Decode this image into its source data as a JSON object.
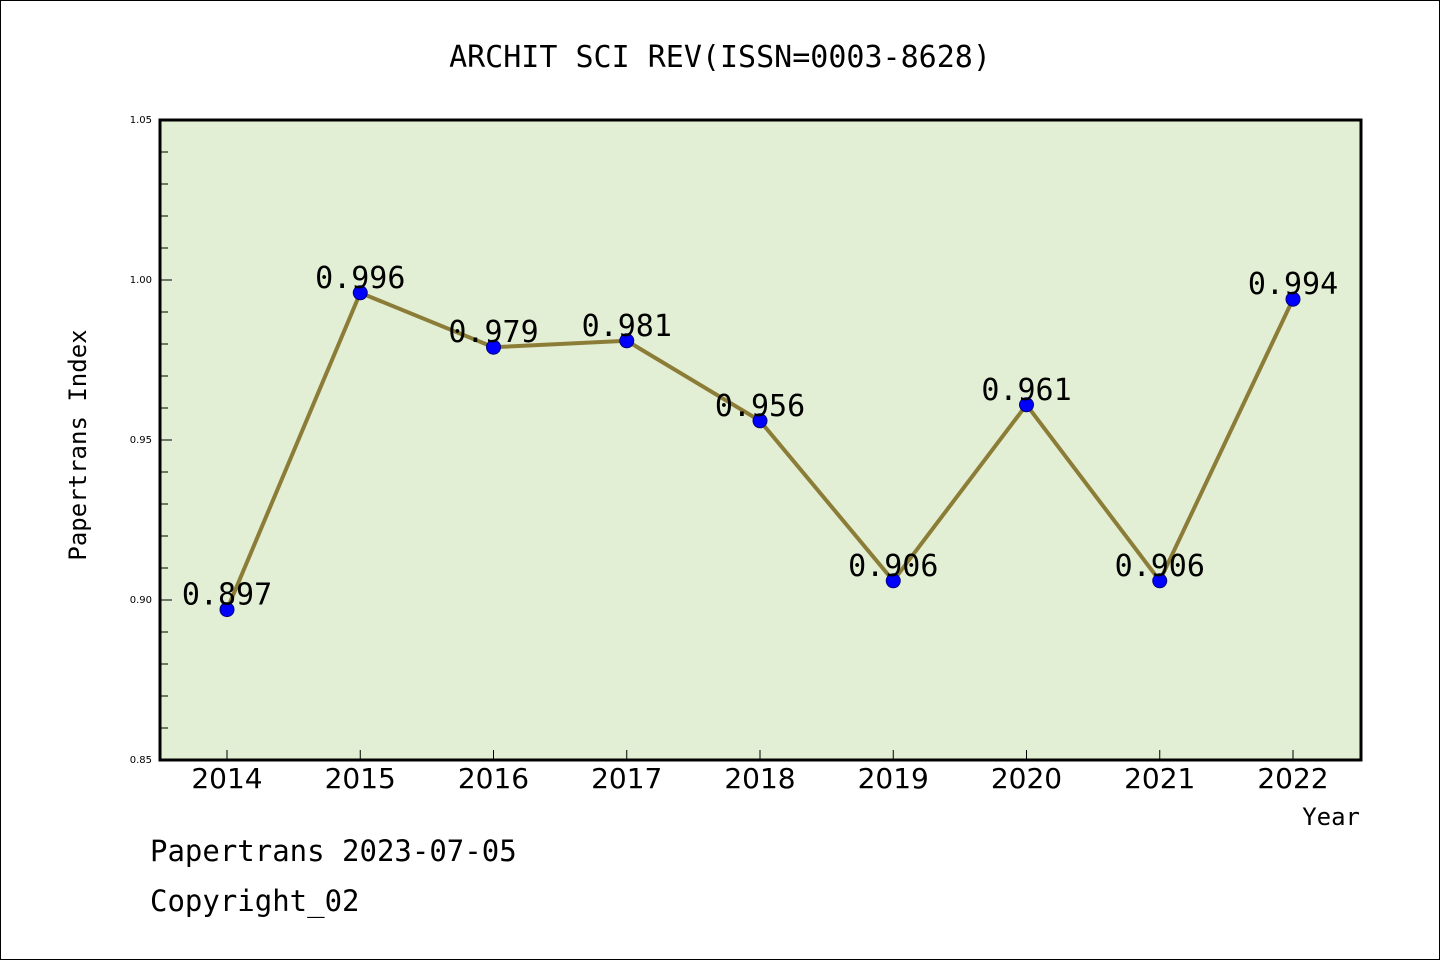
{
  "chart_data": {
    "type": "line",
    "title": "ARCHIT SCI REV(ISSN=0003-8628)",
    "xlabel": "Year",
    "ylabel": "Papertrans Index",
    "categories": [
      "2014",
      "2015",
      "2016",
      "2017",
      "2018",
      "2019",
      "2020",
      "2021",
      "2022"
    ],
    "series": [
      {
        "values": [
          0.897,
          0.996,
          0.979,
          0.981,
          0.956,
          0.906,
          0.961,
          0.906,
          0.994
        ],
        "labels": [
          "0.897",
          "0.996",
          "0.979",
          "0.981",
          "0.956",
          "0.906",
          "0.961",
          "0.906",
          "0.994"
        ]
      }
    ],
    "ylim": [
      0.85,
      1.05
    ],
    "yticks": [
      0.85,
      0.9,
      0.95,
      1.0,
      1.05
    ],
    "ytick_labels": [
      "0.85",
      "0.90",
      "0.95",
      "1.00",
      "1.05"
    ],
    "grid": false,
    "colors": {
      "plot_background": "#e2efd4",
      "line": "#8b7d37",
      "marker": "#0000ff"
    }
  },
  "footer": {
    "line1": "Papertrans 2023-07-05",
    "line2": "Copyright_02"
  }
}
